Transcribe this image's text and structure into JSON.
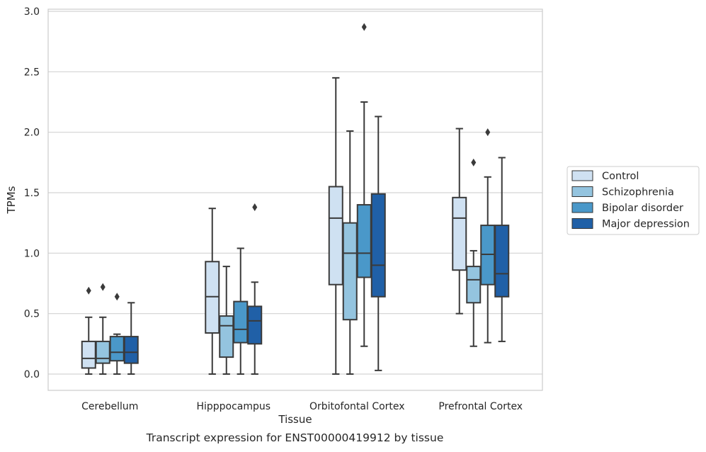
{
  "caption": "Transcript expression for ENST00000419912 by tissue",
  "colors": {
    "Control": "#cfe1f2",
    "Schizophrenia": "#94c4df",
    "Bipolar disorder": "#4a98c9",
    "Major depression": "#2060a7",
    "line": "#3a3a3a",
    "grid": "#d3d3d3"
  },
  "chart_data": {
    "type": "box",
    "title": "",
    "xlabel": "Tissue",
    "ylabel": "TPMs",
    "ylim": [
      -0.14,
      3.02
    ],
    "yticks": [
      0.0,
      0.5,
      1.0,
      1.5,
      2.0,
      2.5,
      3.0
    ],
    "ytick_labels": [
      "0.0",
      "0.5",
      "1.0",
      "1.5",
      "2.0",
      "2.5",
      "3.0"
    ],
    "grid": "horizontal",
    "legend_position": "right",
    "categories": [
      "Cerebellum",
      "Hipppocampus",
      "Orbitofontal Cortex",
      "Prefrontal Cortex"
    ],
    "series": [
      {
        "name": "Control",
        "boxes": [
          {
            "whislo": 0.0,
            "q1": 0.05,
            "med": 0.13,
            "q3": 0.27,
            "whishi": 0.47,
            "fliers": [
              0.69
            ]
          },
          {
            "whislo": 0.0,
            "q1": 0.34,
            "med": 0.64,
            "q3": 0.93,
            "whishi": 1.37,
            "fliers": []
          },
          {
            "whislo": 0.0,
            "q1": 0.74,
            "med": 1.29,
            "q3": 1.55,
            "whishi": 2.45,
            "fliers": []
          },
          {
            "whislo": 0.5,
            "q1": 0.86,
            "med": 1.29,
            "q3": 1.46,
            "whishi": 2.03,
            "fliers": []
          }
        ]
      },
      {
        "name": "Schizophrenia",
        "boxes": [
          {
            "whislo": 0.0,
            "q1": 0.09,
            "med": 0.13,
            "q3": 0.27,
            "whishi": 0.47,
            "fliers": [
              0.72
            ]
          },
          {
            "whislo": 0.0,
            "q1": 0.14,
            "med": 0.4,
            "q3": 0.48,
            "whishi": 0.89,
            "fliers": []
          },
          {
            "whislo": 0.0,
            "q1": 0.45,
            "med": 1.0,
            "q3": 1.25,
            "whishi": 2.01,
            "fliers": []
          },
          {
            "whislo": 0.23,
            "q1": 0.59,
            "med": 0.78,
            "q3": 0.89,
            "whishi": 1.02,
            "fliers": [
              1.75
            ]
          }
        ]
      },
      {
        "name": "Bipolar disorder",
        "boxes": [
          {
            "whislo": 0.0,
            "q1": 0.11,
            "med": 0.18,
            "q3": 0.31,
            "whishi": 0.33,
            "fliers": [
              0.64
            ]
          },
          {
            "whislo": 0.0,
            "q1": 0.26,
            "med": 0.37,
            "q3": 0.6,
            "whishi": 1.04,
            "fliers": []
          },
          {
            "whislo": 0.23,
            "q1": 0.8,
            "med": 1.0,
            "q3": 1.4,
            "whishi": 2.25,
            "fliers": [
              2.87
            ]
          },
          {
            "whislo": 0.26,
            "q1": 0.74,
            "med": 0.99,
            "q3": 1.23,
            "whishi": 1.63,
            "fliers": [
              2.0
            ]
          }
        ]
      },
      {
        "name": "Major depression",
        "boxes": [
          {
            "whislo": 0.0,
            "q1": 0.09,
            "med": 0.18,
            "q3": 0.31,
            "whishi": 0.59,
            "fliers": []
          },
          {
            "whislo": 0.0,
            "q1": 0.25,
            "med": 0.44,
            "q3": 0.56,
            "whishi": 0.76,
            "fliers": [
              1.38
            ]
          },
          {
            "whislo": 0.03,
            "q1": 0.64,
            "med": 0.9,
            "q3": 1.49,
            "whishi": 2.13,
            "fliers": []
          },
          {
            "whislo": 0.27,
            "q1": 0.64,
            "med": 0.83,
            "q3": 1.23,
            "whishi": 1.79,
            "fliers": []
          }
        ]
      }
    ]
  }
}
